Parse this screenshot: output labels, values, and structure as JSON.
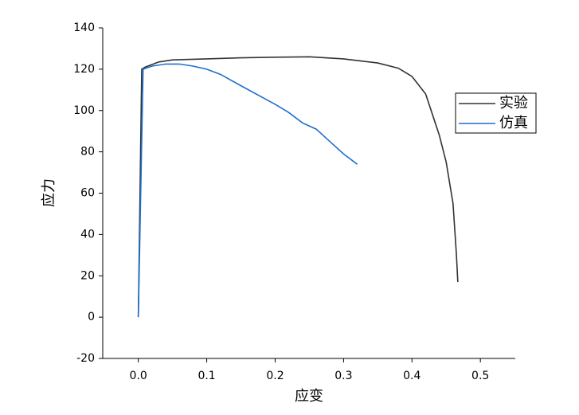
{
  "chart_data": {
    "type": "line",
    "x_label": "应变",
    "y_label": "应力",
    "xlim": [
      -0.052,
      0.551
    ],
    "ylim": [
      -20,
      140
    ],
    "xticks": [
      {
        "value": 0,
        "label": "0.0"
      },
      0.1,
      0.2,
      0.3,
      0.4,
      0.5
    ],
    "yticks": [
      -20,
      0,
      20,
      40,
      60,
      80,
      100,
      120,
      140
    ],
    "legend": "right",
    "series": [
      {
        "name": "实验",
        "color": "#333333",
        "x": [
          0,
          0.005,
          0.01,
          0.03,
          0.05,
          0.1,
          0.15,
          0.2,
          0.25,
          0.3,
          0.35,
          0.38,
          0.4,
          0.42,
          0.43,
          0.44,
          0.45,
          0.46,
          0.465,
          0.467
        ],
        "values": [
          0,
          120,
          121,
          123.5,
          124.5,
          125,
          125.5,
          125.8,
          126,
          125,
          123,
          120.5,
          116.5,
          108,
          98,
          88,
          75,
          55,
          30,
          17
        ]
      },
      {
        "name": "仿真",
        "color": "#1f6fcf",
        "x": [
          0,
          0.007,
          0.02,
          0.04,
          0.06,
          0.08,
          0.1,
          0.12,
          0.15,
          0.2,
          0.22,
          0.24,
          0.26,
          0.28,
          0.3,
          0.32
        ],
        "values": [
          0,
          120,
          121.5,
          122.5,
          122.5,
          121.5,
          120,
          117.5,
          112,
          103,
          99,
          94,
          91,
          85,
          79,
          74
        ]
      }
    ]
  }
}
